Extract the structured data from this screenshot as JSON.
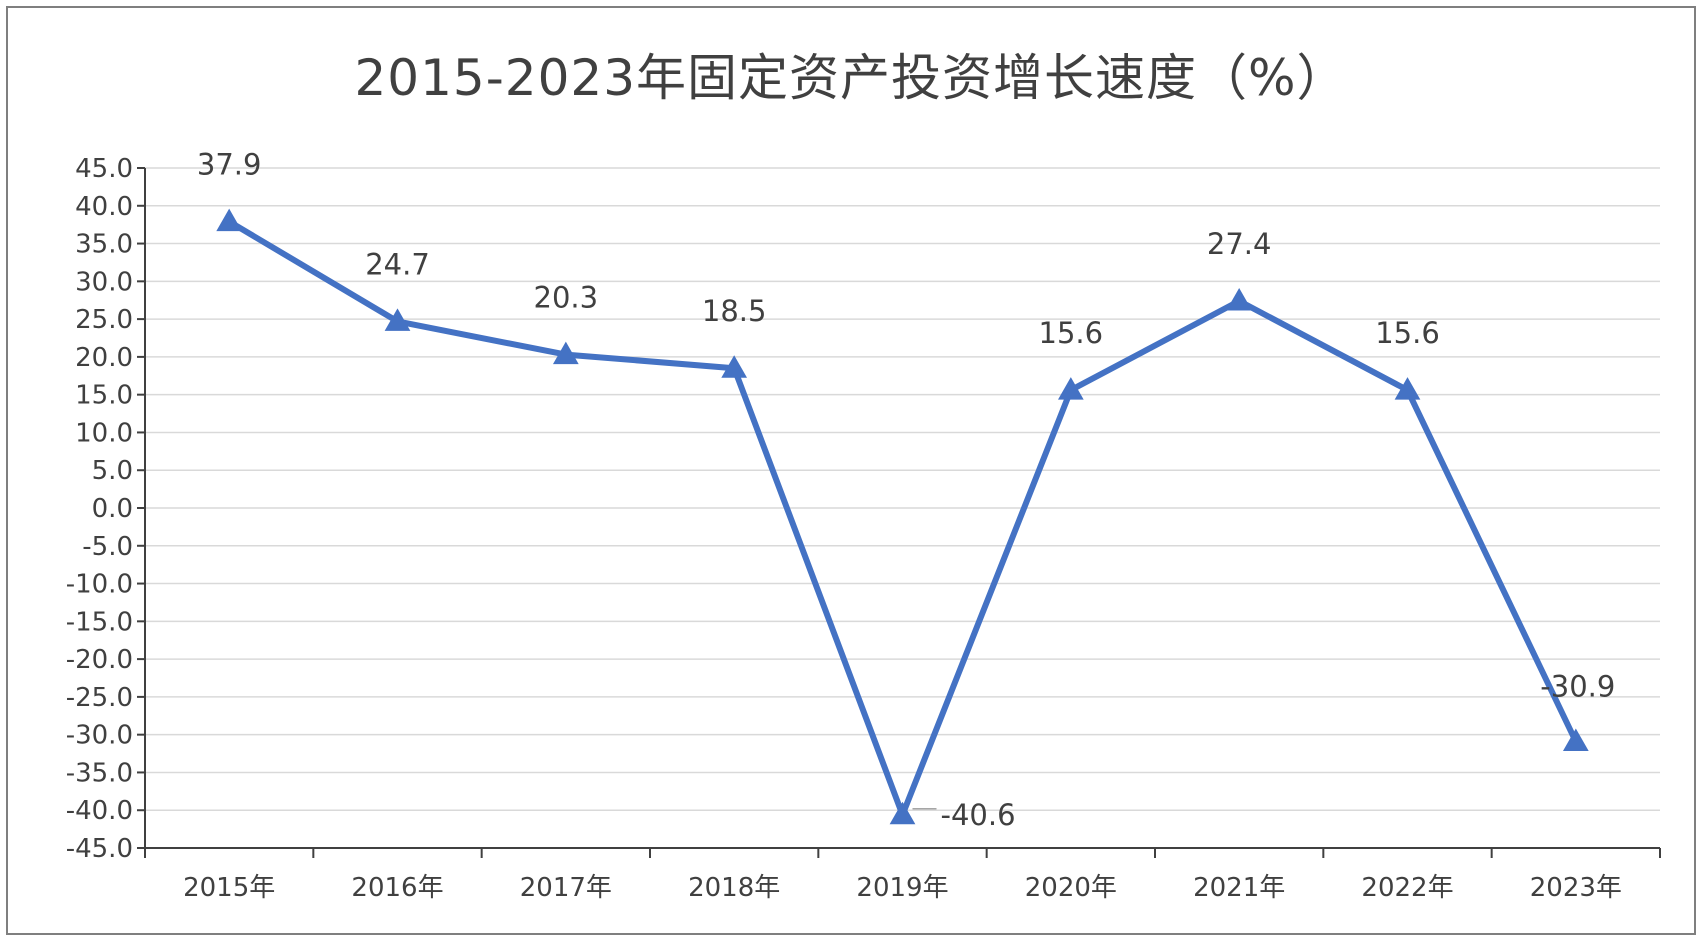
{
  "chart_data": {
    "type": "line",
    "title": "2015-2023年固定资产投资增长速度（%）",
    "categories": [
      "2015年",
      "2016年",
      "2017年",
      "2018年",
      "2019年",
      "2020年",
      "2021年",
      "2022年",
      "2023年"
    ],
    "series": [
      {
        "values": [
          37.9,
          24.7,
          20.3,
          18.5,
          -40.6,
          15.6,
          27.4,
          15.6,
          -30.9
        ],
        "color": "#4472c4",
        "marker": "triangle"
      }
    ],
    "data_labels": [
      "37.9",
      "24.7",
      "20.3",
      "18.5",
      "-40.6",
      "15.6",
      "27.4",
      "15.6",
      "-30.9"
    ],
    "y_ticks": [
      "45.0",
      "40.0",
      "35.0",
      "30.0",
      "25.0",
      "20.0",
      "15.0",
      "10.0",
      "5.0",
      "0.0",
      "-5.0",
      "-10.0",
      "-15.0",
      "-20.0",
      "-25.0",
      "-30.0",
      "-35.0",
      "-40.0",
      "-45.0"
    ],
    "ylim": [
      -45,
      45
    ],
    "y_step": 5,
    "grid": true,
    "legend": "none",
    "colors": {
      "line": "#4472c4",
      "grid": "#d9d9d9",
      "axis": "#404040",
      "text": "#404040"
    }
  }
}
